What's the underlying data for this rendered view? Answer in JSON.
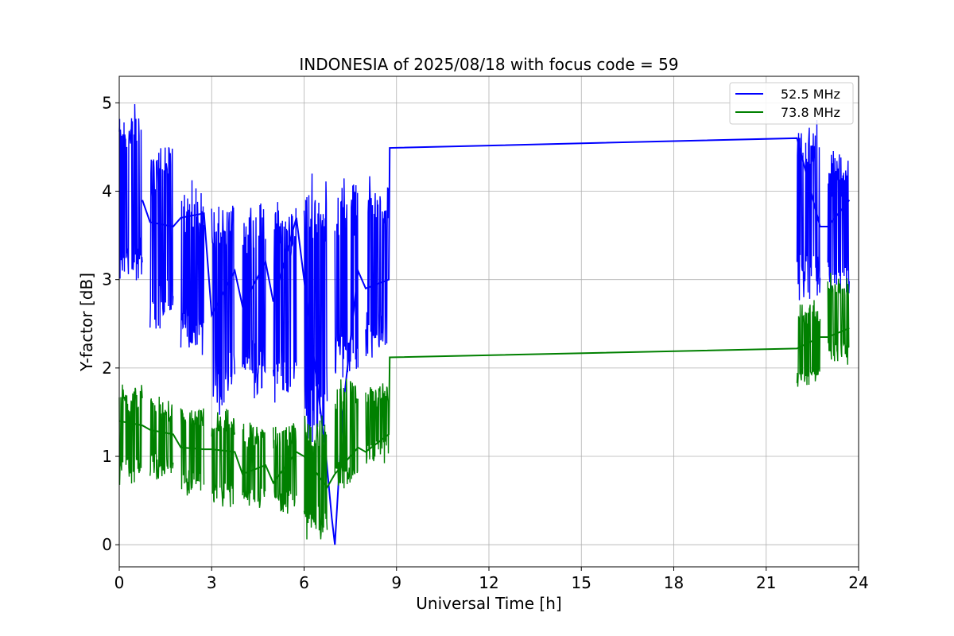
{
  "chart_data": {
    "type": "line",
    "title": "INDONESIA of 2025/08/18 with focus code = 59",
    "xlabel": "Universal Time [h]",
    "ylabel": "Y-factor [dB]",
    "xlim": [
      0,
      24
    ],
    "ylim": [
      -0.25,
      5.3
    ],
    "xticks": [
      0,
      3,
      6,
      9,
      12,
      15,
      18,
      21,
      24
    ],
    "yticks": [
      0,
      1,
      2,
      3,
      4,
      5
    ],
    "grid": true,
    "legend_position": "top-right",
    "series": [
      {
        "name": "52.5 MHz",
        "color": "#0000ff",
        "segments": [
          {
            "x0": 0.0,
            "x1": 0.75,
            "lo": 2.85,
            "hi": 5.05
          },
          {
            "x0": 1.0,
            "x1": 1.75,
            "lo": 2.3,
            "hi": 4.65
          },
          {
            "x0": 2.0,
            "x1": 2.75,
            "lo": 2.05,
            "hi": 4.15
          },
          {
            "x0": 3.0,
            "x1": 3.75,
            "lo": 1.45,
            "hi": 3.95
          },
          {
            "x0": 4.0,
            "x1": 4.75,
            "lo": 1.55,
            "hi": 3.95
          },
          {
            "x0": 5.0,
            "x1": 5.75,
            "lo": 1.5,
            "hi": 3.95
          },
          {
            "x0": 6.0,
            "x1": 6.75,
            "lo": 1.0,
            "hi": 4.3
          },
          {
            "x0": 7.0,
            "x1": 7.75,
            "lo": 1.8,
            "hi": 4.25
          },
          {
            "x0": 8.0,
            "x1": 8.75,
            "lo": 2.0,
            "hi": 4.2
          },
          {
            "x0": 22.0,
            "x1": 22.75,
            "lo": 2.7,
            "hi": 4.9
          },
          {
            "x0": 23.0,
            "x1": 23.7,
            "lo": 2.7,
            "hi": 4.5
          }
        ],
        "connector": [
          [
            0.75,
            3.9
          ],
          [
            1.0,
            3.65
          ],
          [
            1.75,
            3.6
          ],
          [
            2.0,
            3.7
          ],
          [
            2.75,
            3.75
          ],
          [
            3.0,
            2.6
          ],
          [
            3.75,
            3.1
          ],
          [
            4.0,
            2.7
          ],
          [
            4.75,
            3.2
          ],
          [
            5.0,
            2.75
          ],
          [
            5.75,
            3.7
          ],
          [
            6.0,
            3.0
          ],
          [
            6.7,
            1.05
          ],
          [
            6.9,
            0.3
          ],
          [
            7.0,
            0.0
          ],
          [
            7.25,
            1.5
          ],
          [
            7.75,
            3.1
          ],
          [
            8.0,
            2.9
          ],
          [
            8.75,
            3.0
          ],
          [
            8.78,
            4.49
          ],
          [
            22.0,
            4.6
          ],
          [
            22.75,
            3.6
          ],
          [
            23.0,
            3.6
          ],
          [
            23.7,
            3.9
          ]
        ]
      },
      {
        "name": "73.8 MHz",
        "color": "#008000",
        "segments": [
          {
            "x0": 0.0,
            "x1": 0.75,
            "lo": 0.65,
            "hi": 1.85
          },
          {
            "x0": 1.0,
            "x1": 1.75,
            "lo": 0.7,
            "hi": 1.7
          },
          {
            "x0": 2.0,
            "x1": 2.75,
            "lo": 0.55,
            "hi": 1.6
          },
          {
            "x0": 3.0,
            "x1": 3.75,
            "lo": 0.4,
            "hi": 1.55
          },
          {
            "x0": 4.0,
            "x1": 4.75,
            "lo": 0.4,
            "hi": 1.4
          },
          {
            "x0": 5.0,
            "x1": 5.75,
            "lo": 0.3,
            "hi": 1.45
          },
          {
            "x0": 6.0,
            "x1": 6.75,
            "lo": 0.0,
            "hi": 1.5
          },
          {
            "x0": 7.0,
            "x1": 7.75,
            "lo": 0.6,
            "hi": 1.95
          },
          {
            "x0": 8.0,
            "x1": 8.75,
            "lo": 0.9,
            "hi": 1.85
          },
          {
            "x0": 22.0,
            "x1": 22.75,
            "lo": 1.75,
            "hi": 2.8
          },
          {
            "x0": 23.0,
            "x1": 23.7,
            "lo": 2.0,
            "hi": 3.1
          }
        ],
        "connector": [
          [
            0.0,
            1.4
          ],
          [
            0.75,
            1.35
          ],
          [
            1.0,
            1.3
          ],
          [
            1.75,
            1.25
          ],
          [
            2.0,
            1.1
          ],
          [
            2.75,
            1.08
          ],
          [
            3.0,
            1.08
          ],
          [
            3.75,
            1.05
          ],
          [
            4.0,
            0.8
          ],
          [
            4.75,
            0.9
          ],
          [
            5.0,
            0.7
          ],
          [
            5.75,
            1.05
          ],
          [
            6.0,
            1.0
          ],
          [
            6.75,
            0.65
          ],
          [
            7.0,
            0.8
          ],
          [
            7.75,
            1.1
          ],
          [
            8.0,
            1.05
          ],
          [
            8.75,
            1.25
          ],
          [
            8.78,
            2.12
          ],
          [
            22.0,
            2.22
          ],
          [
            22.75,
            2.35
          ],
          [
            23.0,
            2.35
          ],
          [
            23.7,
            2.45
          ]
        ]
      }
    ]
  }
}
